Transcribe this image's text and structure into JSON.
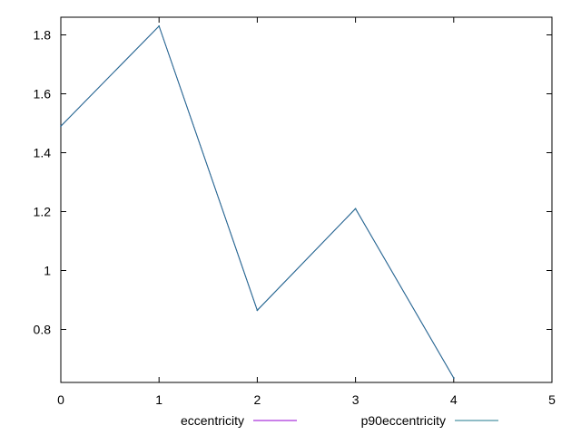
{
  "chart_data": {
    "type": "line",
    "title": "",
    "xlabel": "",
    "ylabel": "",
    "xlim": [
      0,
      5
    ],
    "ylim": [
      0.62,
      1.86
    ],
    "x_ticks": [
      0,
      1,
      2,
      3,
      4,
      5
    ],
    "x_tick_labels": [
      "0",
      "1",
      "2",
      "3",
      "4",
      "5"
    ],
    "y_ticks": [
      0.8,
      1.0,
      1.2,
      1.4,
      1.6,
      1.8
    ],
    "y_tick_labels": [
      "0.8",
      "1",
      "1.2",
      "1.4",
      "1.6",
      "1.8"
    ],
    "grid": false,
    "legend_position": "bottom",
    "x": [
      0,
      1,
      2,
      3,
      4
    ],
    "series": [
      {
        "name": "eccentricity",
        "color": "#9400d3",
        "values": [
          1.49,
          1.83,
          0.865,
          1.21,
          0.635
        ]
      },
      {
        "name": "p90eccentricity",
        "color": "#1f7a8c",
        "values": [
          1.49,
          1.83,
          0.865,
          1.21,
          0.635
        ]
      }
    ]
  }
}
